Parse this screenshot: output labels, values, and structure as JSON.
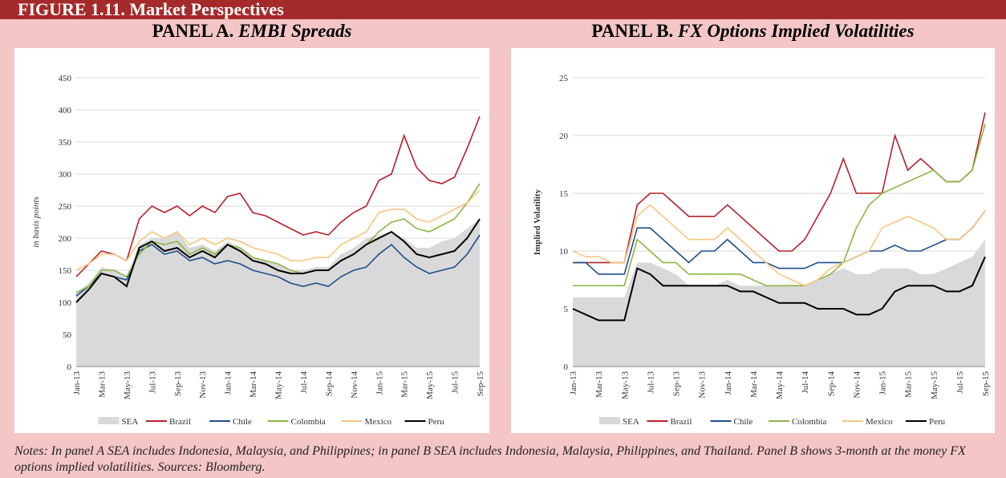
{
  "header": {
    "title": "FIGURE 1.11. Market Perspectives"
  },
  "chart_data": [
    {
      "type": "line",
      "panel": "PANEL A.",
      "title": "EMBI Spreads",
      "ylabel": "in basis points",
      "categories": [
        "Jan-13",
        null,
        "Mar-13",
        null,
        "May-13",
        null,
        "Jul-13",
        null,
        "Sep-13",
        null,
        "Nov-13",
        null,
        "Jan-14",
        null,
        "Mar-14",
        null,
        "May-14",
        null,
        "Jul-14",
        null,
        "Sep-14",
        null,
        "Nov-14",
        null,
        "Jan-15",
        null,
        "Mar-15",
        null,
        "May-15",
        null,
        "Jul-15",
        null,
        "Sep-15"
      ],
      "ylim": [
        0,
        450
      ],
      "yticks": [
        0,
        50,
        100,
        150,
        200,
        250,
        300,
        350,
        400,
        450
      ],
      "grid": true,
      "series": [
        {
          "name": "SEA",
          "color": "#d9d9d9",
          "area": true,
          "values": [
            115,
            130,
            155,
            150,
            140,
            190,
            200,
            200,
            210,
            185,
            190,
            180,
            195,
            185,
            170,
            165,
            160,
            150,
            150,
            155,
            155,
            175,
            185,
            200,
            205,
            210,
            200,
            185,
            185,
            195,
            200,
            215,
            230
          ]
        },
        {
          "name": "Brazil",
          "color": "#b5202a",
          "values": [
            140,
            160,
            180,
            175,
            165,
            230,
            250,
            240,
            250,
            235,
            250,
            240,
            265,
            270,
            240,
            235,
            225,
            215,
            205,
            210,
            205,
            225,
            240,
            250,
            290,
            300,
            360,
            310,
            290,
            285,
            295,
            340,
            390
          ]
        },
        {
          "name": "Chile",
          "color": "#1f4e8c",
          "values": [
            110,
            125,
            145,
            140,
            135,
            180,
            190,
            175,
            180,
            165,
            170,
            160,
            165,
            160,
            150,
            145,
            140,
            130,
            125,
            130,
            125,
            140,
            150,
            155,
            175,
            190,
            170,
            155,
            145,
            150,
            155,
            175,
            205
          ]
        },
        {
          "name": "Colombia",
          "color": "#8db644",
          "values": [
            115,
            125,
            150,
            150,
            140,
            175,
            195,
            190,
            195,
            175,
            185,
            175,
            190,
            185,
            170,
            165,
            160,
            150,
            145,
            150,
            150,
            165,
            175,
            190,
            210,
            225,
            230,
            215,
            210,
            220,
            230,
            255,
            285
          ]
        },
        {
          "name": "Mexico",
          "color": "#f5c77e",
          "values": [
            150,
            160,
            175,
            175,
            165,
            195,
            210,
            200,
            210,
            190,
            200,
            190,
            200,
            195,
            185,
            180,
            175,
            165,
            165,
            170,
            170,
            190,
            200,
            210,
            240,
            245,
            245,
            230,
            225,
            235,
            245,
            255,
            275
          ]
        },
        {
          "name": "Peru",
          "color": "#000000",
          "values": [
            100,
            120,
            145,
            140,
            125,
            185,
            195,
            180,
            185,
            170,
            180,
            170,
            190,
            180,
            165,
            160,
            150,
            145,
            145,
            150,
            150,
            165,
            175,
            190,
            200,
            210,
            195,
            175,
            170,
            175,
            180,
            200,
            230
          ]
        }
      ]
    },
    {
      "type": "line",
      "panel": "PANEL B.",
      "title": "FX Options Implied Volatilities",
      "ylabel": "Implied Volatility",
      "categories": [
        "Jan-13",
        null,
        "Mar-13",
        null,
        "May-13",
        null,
        "Jul-13",
        null,
        "Sep-13",
        null,
        "Nov-13",
        null,
        "Jan-14",
        null,
        "Mar-14",
        null,
        "May-14",
        null,
        "Jul-14",
        null,
        "Sep-14",
        null,
        "Nov-14",
        null,
        "Jan-15",
        null,
        "Mar-15",
        null,
        "May-15",
        null,
        "Jul-15",
        null,
        "Sep-15"
      ],
      "ylim": [
        0,
        25
      ],
      "yticks": [
        0,
        5,
        10,
        15,
        20,
        25
      ],
      "grid": true,
      "series": [
        {
          "name": "SEA",
          "color": "#d9d9d9",
          "area": true,
          "values": [
            6,
            6,
            6,
            6,
            6,
            9,
            9,
            8.5,
            8,
            7,
            7,
            7,
            7.5,
            7,
            7,
            7,
            7,
            7,
            7,
            7.5,
            8,
            8.5,
            8,
            8,
            8.5,
            8.5,
            8.5,
            8,
            8,
            8.5,
            9,
            9.5,
            11
          ]
        },
        {
          "name": "Brazil",
          "color": "#b5202a",
          "values": [
            9,
            9,
            9,
            9,
            9,
            14,
            15,
            15,
            14,
            13,
            13,
            13,
            14,
            13,
            12,
            11,
            10,
            10,
            11,
            13,
            15,
            18,
            15,
            15,
            15,
            20,
            17,
            18,
            17,
            16,
            16,
            17,
            22
          ]
        },
        {
          "name": "Chile",
          "color": "#1f4e8c",
          "values": [
            9,
            9,
            8,
            8,
            8,
            12,
            12,
            11,
            10,
            9,
            10,
            10,
            11,
            10,
            9,
            9,
            8.5,
            8.5,
            8.5,
            9,
            9,
            9,
            9.5,
            10,
            10,
            10.5,
            10,
            10,
            10.5,
            11,
            11,
            12,
            13.5
          ]
        },
        {
          "name": "Colombia",
          "color": "#8db644",
          "values": [
            7,
            7,
            7,
            7,
            7,
            11,
            10,
            9,
            9,
            8,
            8,
            8,
            8,
            8,
            7.5,
            7,
            7,
            7,
            7,
            7.5,
            8,
            9,
            12,
            14,
            15,
            15.5,
            16,
            16.5,
            17,
            16,
            16,
            17,
            21
          ]
        },
        {
          "name": "Mexico",
          "color": "#f5c77e",
          "values": [
            10,
            9.5,
            9.5,
            9,
            9,
            13,
            14,
            13,
            12,
            11,
            11,
            11,
            12,
            11,
            10,
            9,
            8,
            7.5,
            7,
            7.5,
            8.5,
            9,
            9.5,
            10,
            12,
            12.5,
            13,
            12.5,
            12,
            11,
            11,
            12,
            13.5
          ]
        },
        {
          "name": "Peru",
          "color": "#000000",
          "values": [
            5,
            4.5,
            4,
            4,
            4,
            8.5,
            8,
            7,
            7,
            7,
            7,
            7,
            7,
            6.5,
            6.5,
            6,
            5.5,
            5.5,
            5.5,
            5,
            5,
            5,
            4.5,
            4.5,
            5,
            6.5,
            7,
            7,
            7,
            6.5,
            6.5,
            7,
            9.5
          ]
        }
      ]
    }
  ],
  "notes": "Notes: In panel A SEA includes Indonesia, Malaysia, and Philippines; in panel B SEA includes Indonesia, Malaysia, Philippines, and Thailand. Panel B shows 3-month at the money FX options implied volatilities. Sources: Bloomberg."
}
